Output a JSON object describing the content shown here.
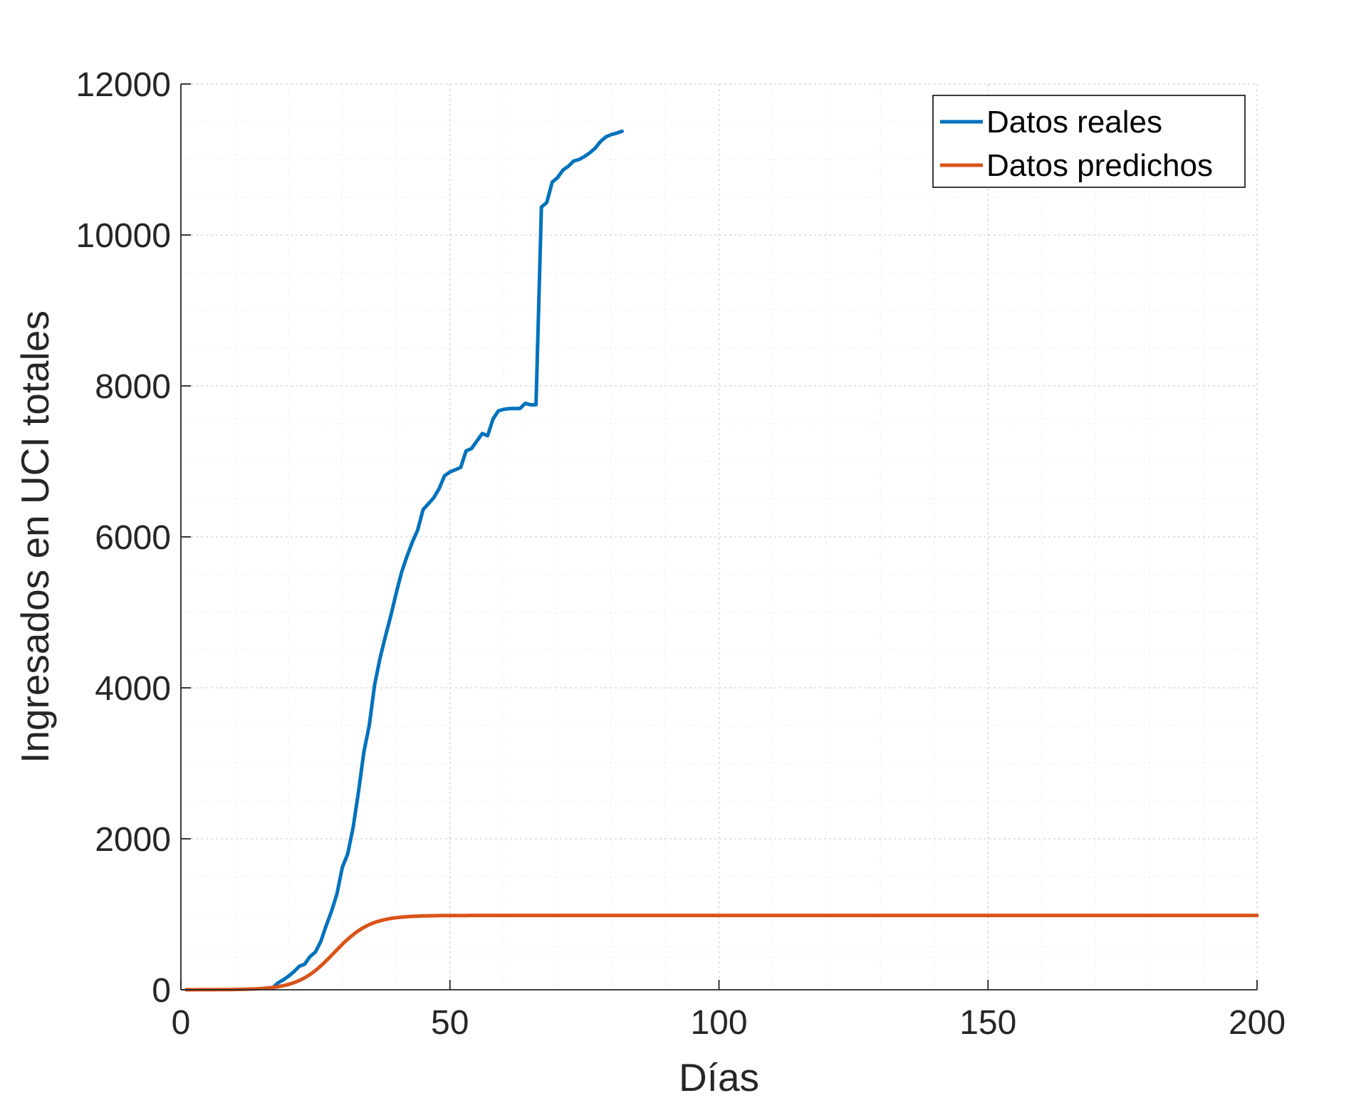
{
  "chart_data": {
    "type": "line",
    "title": "",
    "xlabel": "Días",
    "ylabel": "Ingresados en UCI totales",
    "xlim": [
      0,
      200
    ],
    "ylim": [
      0,
      12000
    ],
    "xticks": [
      0,
      50,
      100,
      150,
      200
    ],
    "yticks": [
      0,
      2000,
      4000,
      6000,
      8000,
      10000,
      12000
    ],
    "grid": true,
    "minor_grid": true,
    "legend_position": "top-right",
    "series": [
      {
        "name": "Datos reales",
        "color": "#0072BD",
        "points": [
          [
            17,
            20
          ],
          [
            18,
            90
          ],
          [
            19,
            130
          ],
          [
            20,
            180
          ],
          [
            21,
            240
          ],
          [
            22,
            310
          ],
          [
            23,
            340
          ],
          [
            24,
            440
          ],
          [
            25,
            500
          ],
          [
            26,
            640
          ],
          [
            27,
            850
          ],
          [
            28,
            1040
          ],
          [
            29,
            1270
          ],
          [
            30,
            1620
          ],
          [
            31,
            1800
          ],
          [
            32,
            2150
          ],
          [
            33,
            2620
          ],
          [
            34,
            3150
          ],
          [
            35,
            3500
          ],
          [
            36,
            4040
          ],
          [
            37,
            4390
          ],
          [
            38,
            4680
          ],
          [
            39,
            4950
          ],
          [
            40,
            5250
          ],
          [
            41,
            5530
          ],
          [
            42,
            5740
          ],
          [
            43,
            5930
          ],
          [
            44,
            6090
          ],
          [
            45,
            6360
          ],
          [
            46,
            6440
          ],
          [
            47,
            6520
          ],
          [
            48,
            6640
          ],
          [
            49,
            6810
          ],
          [
            50,
            6860
          ],
          [
            51,
            6890
          ],
          [
            52,
            6920
          ],
          [
            53,
            7140
          ],
          [
            54,
            7170
          ],
          [
            55,
            7270
          ],
          [
            56,
            7370
          ],
          [
            57,
            7340
          ],
          [
            58,
            7560
          ],
          [
            59,
            7670
          ],
          [
            60,
            7690
          ],
          [
            61,
            7700
          ],
          [
            62,
            7700
          ],
          [
            63,
            7700
          ],
          [
            64,
            7770
          ],
          [
            65,
            7750
          ],
          [
            66,
            7750
          ],
          [
            67,
            10370
          ],
          [
            68,
            10430
          ],
          [
            69,
            10700
          ],
          [
            70,
            10760
          ],
          [
            71,
            10860
          ],
          [
            72,
            10910
          ],
          [
            73,
            10980
          ],
          [
            74,
            11000
          ],
          [
            75,
            11040
          ],
          [
            76,
            11090
          ],
          [
            77,
            11150
          ],
          [
            78,
            11240
          ],
          [
            79,
            11300
          ],
          [
            80,
            11330
          ],
          [
            81,
            11350
          ],
          [
            82,
            11375
          ]
        ]
      },
      {
        "name": "Datos predichos",
        "color": "#D95319",
        "logistic": {
          "K": 985,
          "r": 0.3,
          "t0": 28.5,
          "x_start": 1,
          "x_end": 200
        }
      }
    ]
  }
}
